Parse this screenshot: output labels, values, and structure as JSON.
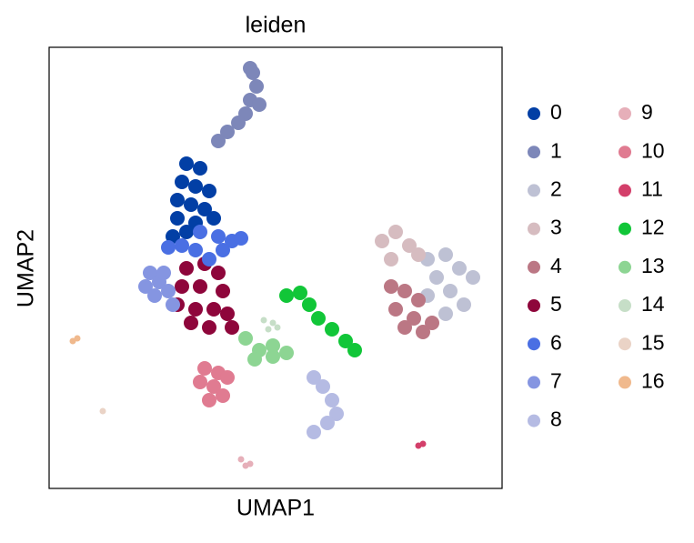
{
  "chart_data": {
    "type": "scatter",
    "title": "leiden",
    "x_label": "UMAP1",
    "y_label": "UMAP2",
    "xlim": [
      0,
      498
    ],
    "ylim": [
      0,
      485
    ],
    "series": [
      {
        "name": "0",
        "color": "#023fa5",
        "x": [
          151,
          166,
          146,
          161,
          176,
          141,
          156,
          171,
          141,
          161,
          181,
          136,
          151
        ],
        "y": [
          357,
          352,
          337,
          332,
          327,
          317,
          312,
          307,
          297,
          292,
          297,
          277,
          282
        ]
      },
      {
        "name": "1",
        "color": "#7d87b9",
        "x": [
          221,
          224,
          228,
          221,
          216,
          231,
          208,
          196,
          186
        ],
        "y": [
          462,
          457,
          442,
          427,
          412,
          422,
          402,
          392,
          382
        ]
      },
      {
        "name": "2",
        "color": "#bec1d4",
        "x": [
          416,
          436,
          451,
          466,
          426,
          441,
          456,
          416,
          436
        ],
        "y": [
          252,
          257,
          242,
          232,
          232,
          217,
          202,
          212,
          192
        ]
      },
      {
        "name": "3",
        "color": "#d6bcc0",
        "x": [
          366,
          381,
          396,
          376,
          406
        ],
        "y": [
          272,
          282,
          267,
          252,
          257
        ]
      },
      {
        "name": "4",
        "color": "#bb7784",
        "x": [
          376,
          391,
          406,
          381,
          401,
          421,
          391,
          411
        ],
        "y": [
          222,
          217,
          207,
          197,
          187,
          182,
          177,
          172
        ]
      },
      {
        "name": "5",
        "color": "#8e063b",
        "x": [
          151,
          171,
          186,
          146,
          166,
          191,
          141,
          161,
          181,
          196,
          156,
          176,
          201
        ],
        "y": [
          242,
          247,
          237,
          222,
          222,
          217,
          202,
          197,
          197,
          192,
          182,
          177,
          177
        ]
      },
      {
        "name": "6",
        "color": "#4a6fe3",
        "x": [
          166,
          186,
          201,
          211,
          146,
          161,
          191,
          131,
          176
        ],
        "y": [
          282,
          277,
          272,
          275,
          267,
          262,
          262,
          265,
          252
        ]
      },
      {
        "name": "7",
        "color": "#8595e1",
        "x": [
          111,
          121,
          106,
          131,
          116,
          126,
          136
        ],
        "y": [
          237,
          227,
          222,
          217,
          212,
          237,
          202
        ]
      },
      {
        "name": "8",
        "color": "#b5bbe3",
        "x": [
          291,
          301,
          311,
          316,
          306,
          291
        ],
        "y": [
          122,
          112,
          97,
          82,
          72,
          62
        ]
      },
      {
        "name": "9",
        "color": "#e6afb9",
        "x": [
          211,
          221,
          216
        ],
        "y": [
          32,
          27,
          25
        ]
      },
      {
        "name": "10",
        "color": "#e07b91",
        "x": [
          171,
          186,
          166,
          181,
          196,
          176,
          191
        ],
        "y": [
          132,
          127,
          117,
          112,
          122,
          97,
          102
        ]
      },
      {
        "name": "11",
        "color": "#d33f6a",
        "x": [
          406,
          411
        ],
        "y": [
          47,
          49
        ]
      },
      {
        "name": "12",
        "color": "#11c638",
        "x": [
          261,
          276,
          286,
          296,
          311,
          326,
          336
        ],
        "y": [
          212,
          215,
          202,
          187,
          175,
          162,
          152
        ]
      },
      {
        "name": "13",
        "color": "#8dd593",
        "x": [
          216,
          231,
          246,
          261,
          226,
          246
        ],
        "y": [
          165,
          152,
          145,
          149,
          142,
          157
        ]
      },
      {
        "name": "14",
        "color": "#c6dec7",
        "x": [
          236,
          246,
          251,
          241
        ],
        "y": [
          185,
          182,
          177,
          175
        ]
      },
      {
        "name": "15",
        "color": "#ead3c6",
        "x": [
          59
        ],
        "y": [
          85
        ]
      },
      {
        "name": "16",
        "color": "#f0b98d",
        "x": [
          26,
          31
        ],
        "y": [
          162,
          165
        ]
      }
    ]
  }
}
